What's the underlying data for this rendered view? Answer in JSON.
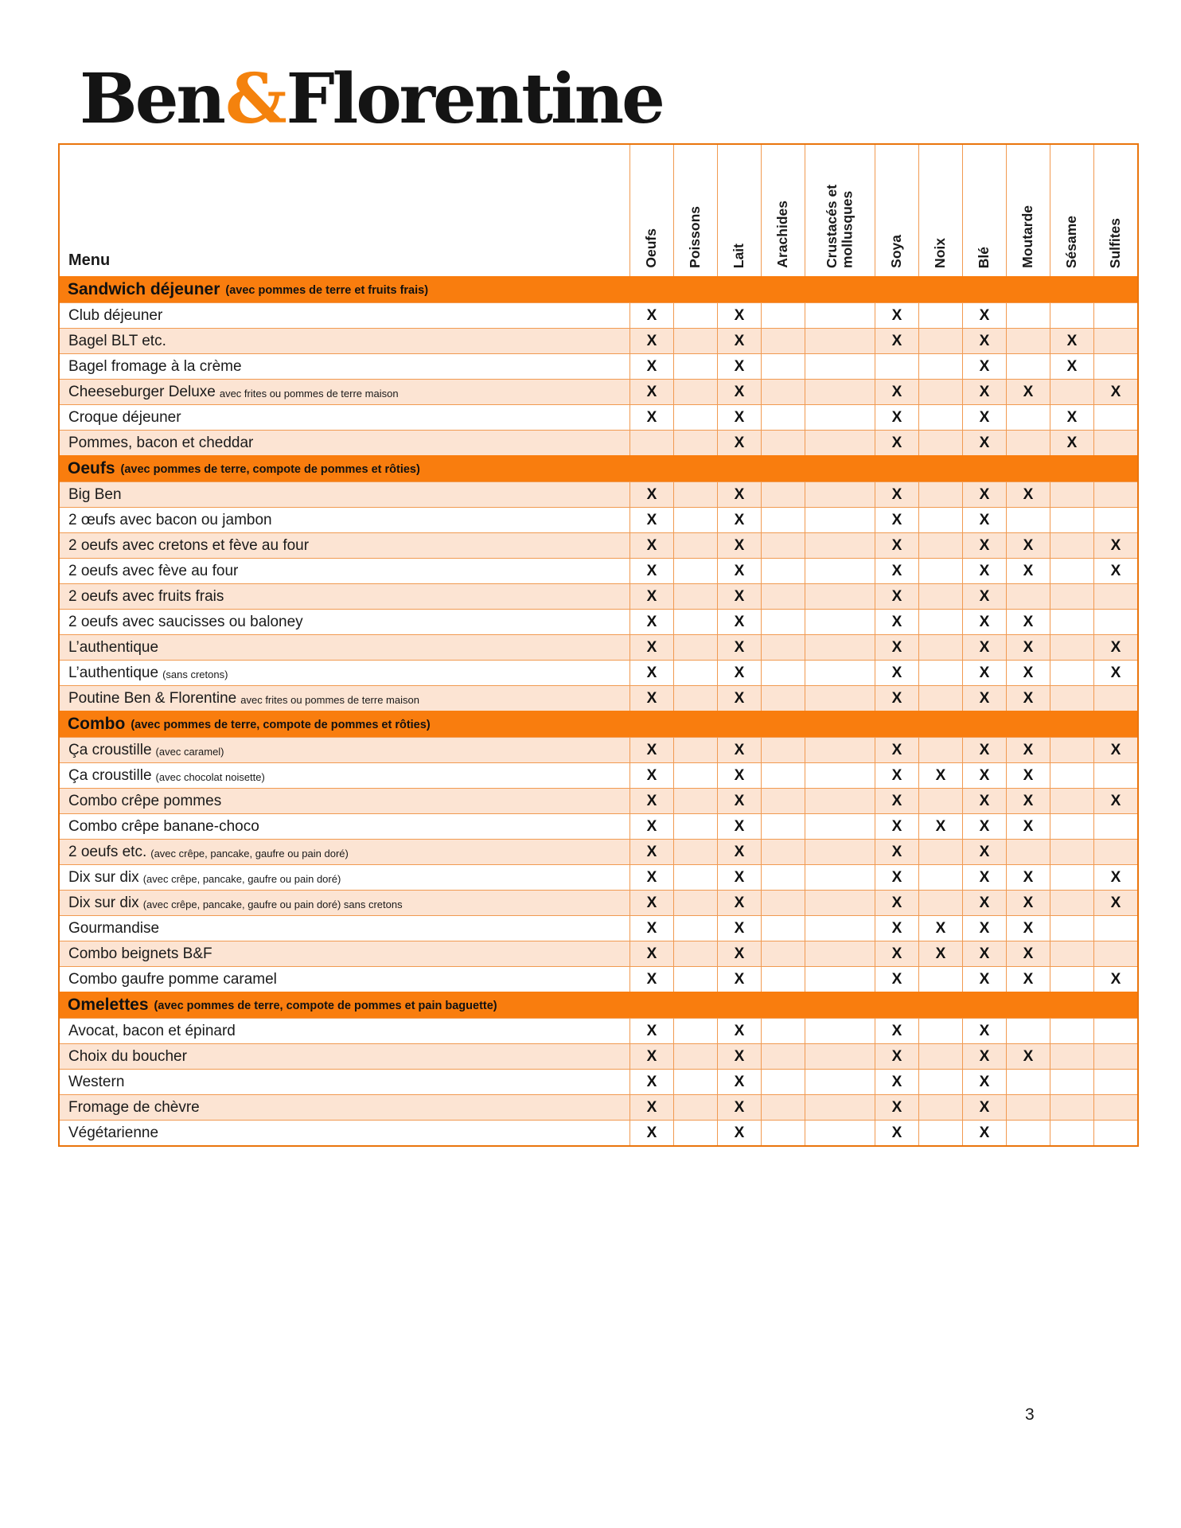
{
  "logo": {
    "part1": "Ben",
    "amp": "&",
    "part2": "Florentine",
    "amp_color": "#f4820d"
  },
  "page_number": "3",
  "table": {
    "menu_header": "Menu",
    "mark": "X",
    "columns": [
      "Oeufs",
      "Poissons",
      "Lait",
      "Arachides",
      "Crustacés et mollusques",
      "Soya",
      "Noix",
      "Blé",
      "Moutarde",
      "Sésame",
      "Sulfites"
    ],
    "colors": {
      "section_bg": "#f97d0e",
      "row_alt_bg": "#fce4d3",
      "grid_line": "#f19a51",
      "frame": "#ea750d"
    },
    "sections": [
      {
        "title": "Sandwich déjeuner",
        "note": "(avec pommes de terre et fruits frais)",
        "first_row_shaded": false,
        "rows": [
          {
            "label": "Club déjeuner",
            "note": "",
            "marks": [
              0,
              2,
              5,
              7
            ]
          },
          {
            "label": "Bagel BLT etc.",
            "note": "",
            "marks": [
              0,
              2,
              5,
              7,
              9
            ]
          },
          {
            "label": "Bagel fromage à la crème",
            "note": "",
            "marks": [
              0,
              2,
              7,
              9
            ]
          },
          {
            "label": "Cheeseburger Deluxe",
            "note": "avec frites ou pommes de terre maison",
            "marks": [
              0,
              2,
              5,
              7,
              8,
              10
            ]
          },
          {
            "label": "Croque déjeuner",
            "note": "",
            "marks": [
              0,
              2,
              5,
              7,
              9
            ]
          },
          {
            "label": "Pommes, bacon et cheddar",
            "note": "",
            "marks": [
              2,
              5,
              7,
              9
            ]
          }
        ]
      },
      {
        "title": "Oeufs",
        "note": "(avec pommes de terre, compote de pommes et rôties)",
        "first_row_shaded": true,
        "rows": [
          {
            "label": "Big Ben",
            "note": "",
            "marks": [
              0,
              2,
              5,
              7,
              8
            ]
          },
          {
            "label": "2 œufs avec bacon ou jambon",
            "note": "",
            "marks": [
              0,
              2,
              5,
              7
            ]
          },
          {
            "label": "2 oeufs avec cretons et fève au four",
            "note": "",
            "marks": [
              0,
              2,
              5,
              7,
              8,
              10
            ]
          },
          {
            "label": "2 oeufs avec fève au four",
            "note": "",
            "marks": [
              0,
              2,
              5,
              7,
              8,
              10
            ]
          },
          {
            "label": "2 oeufs avec fruits frais",
            "note": "",
            "marks": [
              0,
              2,
              5,
              7
            ]
          },
          {
            "label": "2 oeufs avec saucisses ou baloney",
            "note": "",
            "marks": [
              0,
              2,
              5,
              7,
              8
            ]
          },
          {
            "label": "L’authentique",
            "note": "",
            "marks": [
              0,
              2,
              5,
              7,
              8,
              10
            ]
          },
          {
            "label": "L’authentique",
            "note": "(sans cretons)",
            "marks": [
              0,
              2,
              5,
              7,
              8,
              10
            ]
          },
          {
            "label": "Poutine Ben & Florentine",
            "note": "avec frites ou pommes de terre maison",
            "marks": [
              0,
              2,
              5,
              7,
              8
            ]
          }
        ]
      },
      {
        "title": "Combo",
        "note": "(avec pommes de terre, compote de pommes et rôties)",
        "first_row_shaded": true,
        "rows": [
          {
            "label": "Ça croustille",
            "note": "(avec caramel)",
            "marks": [
              0,
              2,
              5,
              7,
              8,
              10
            ]
          },
          {
            "label": "Ça croustille",
            "note": "(avec chocolat noisette)",
            "marks": [
              0,
              2,
              5,
              6,
              7,
              8
            ]
          },
          {
            "label": "Combo crêpe pommes",
            "note": "",
            "marks": [
              0,
              2,
              5,
              7,
              8,
              10
            ]
          },
          {
            "label": "Combo crêpe banane-choco",
            "note": "",
            "marks": [
              0,
              2,
              5,
              6,
              7,
              8
            ]
          },
          {
            "label": "2 oeufs etc.",
            "note": "(avec crêpe, pancake, gaufre ou pain doré)",
            "marks": [
              0,
              2,
              5,
              7
            ]
          },
          {
            "label": "Dix sur dix",
            "note": "(avec crêpe, pancake, gaufre ou pain doré)",
            "marks": [
              0,
              2,
              5,
              7,
              8,
              10
            ]
          },
          {
            "label": "Dix sur dix",
            "note": "(avec crêpe, pancake, gaufre ou pain doré) sans cretons",
            "marks": [
              0,
              2,
              5,
              7,
              8,
              10
            ]
          },
          {
            "label": "Gourmandise",
            "note": "",
            "marks": [
              0,
              2,
              5,
              6,
              7,
              8
            ]
          },
          {
            "label": "Combo beignets B&F",
            "note": "",
            "marks": [
              0,
              2,
              5,
              6,
              7,
              8
            ]
          },
          {
            "label": "Combo gaufre pomme caramel",
            "note": "",
            "marks": [
              0,
              2,
              5,
              7,
              8,
              10
            ]
          }
        ]
      },
      {
        "title": "Omelettes",
        "note": "(avec pommes de terre, compote de pommes et pain baguette)",
        "first_row_shaded": false,
        "rows": [
          {
            "label": "Avocat, bacon et épinard",
            "note": "",
            "marks": [
              0,
              2,
              5,
              7
            ]
          },
          {
            "label": "Choix du boucher",
            "note": "",
            "marks": [
              0,
              2,
              5,
              7,
              8
            ]
          },
          {
            "label": "Western",
            "note": "",
            "marks": [
              0,
              2,
              5,
              7
            ]
          },
          {
            "label": "Fromage de chèvre",
            "note": "",
            "marks": [
              0,
              2,
              5,
              7
            ]
          },
          {
            "label": "Végétarienne",
            "note": "",
            "marks": [
              0,
              2,
              5,
              7
            ]
          }
        ]
      }
    ]
  }
}
